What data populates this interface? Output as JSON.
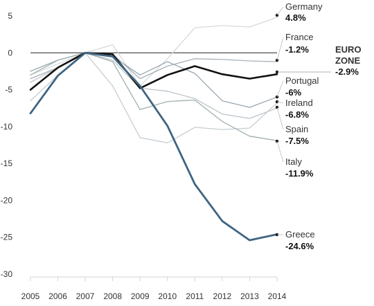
{
  "chart_data": {
    "type": "line",
    "x": [
      2005,
      2006,
      2007,
      2008,
      2009,
      2010,
      2011,
      2012,
      2013,
      2014
    ],
    "xtick_labels": [
      "2005",
      "2006",
      "2007",
      "2008",
      "2009",
      "2010",
      "2011",
      "2012",
      "2013",
      "2014"
    ],
    "ylim": [
      -30,
      5
    ],
    "yticks": [
      5,
      0,
      -5,
      -10,
      -15,
      -20,
      -25,
      -30
    ],
    "ytick_labels": [
      "5",
      "0",
      "-5",
      "-10",
      "-15",
      "-20",
      "-25",
      "-30"
    ],
    "grid": false,
    "zero_line": true,
    "series": [
      {
        "name": "Germany",
        "value_label": "4.8%",
        "color": "#d5d9dc",
        "emphasis": "light",
        "values": [
          -3.0,
          -1.5,
          0,
          1.1,
          -4.5,
          -0.8,
          3.4,
          3.7,
          3.5,
          4.8
        ]
      },
      {
        "name": "France",
        "value_label": "-1.2%",
        "color": "#a7b0b7",
        "emphasis": "light",
        "values": [
          -3.5,
          -2.0,
          0,
          -0.2,
          -3.5,
          -1.8,
          -0.8,
          -0.9,
          -1.1,
          -1.2
        ]
      },
      {
        "name": "Portugal",
        "value_label": "-6%",
        "color": "#9aa7b0",
        "emphasis": "light",
        "values": [
          -2.5,
          -1.0,
          0,
          -0.5,
          -3.0,
          -1.2,
          -2.8,
          -6.5,
          -7.4,
          -6.0
        ]
      },
      {
        "name": "Ireland",
        "value_label": "-6.8%",
        "color": "#c7ced3",
        "emphasis": "light",
        "values": [
          -6.5,
          -3.0,
          0,
          -4.5,
          -11.5,
          -12.2,
          -10.1,
          -10.4,
          -10.2,
          -6.8
        ]
      },
      {
        "name": "Spain",
        "value_label": "-7.5%",
        "color": "#bcc4ca",
        "emphasis": "light",
        "values": [
          -4.0,
          -2.0,
          0,
          -1.0,
          -4.8,
          -5.2,
          -6.2,
          -8.3,
          -8.9,
          -7.5
        ]
      },
      {
        "name": "Italy",
        "value_label": "-11.9%",
        "color": "#9eb0ac",
        "emphasis": "light",
        "values": [
          -3.0,
          -1.0,
          0,
          -1.2,
          -7.7,
          -6.6,
          -6.4,
          -9.3,
          -11.3,
          -11.9
        ]
      },
      {
        "name": "EURO ZONE",
        "value_label": "-2.9%",
        "color": "#111111",
        "emphasis": "bold",
        "values": [
          -5.0,
          -2.0,
          0,
          -0.2,
          -4.8,
          -3.0,
          -1.8,
          -2.9,
          -3.5,
          -2.9
        ]
      },
      {
        "name": "Greece",
        "value_label": "-24.6%",
        "color": "#3f6481",
        "emphasis": "highlight",
        "values": [
          -8.2,
          -3.1,
          0,
          -0.5,
          -4.5,
          -9.9,
          -17.8,
          -22.8,
          -25.4,
          -24.6
        ]
      }
    ]
  }
}
